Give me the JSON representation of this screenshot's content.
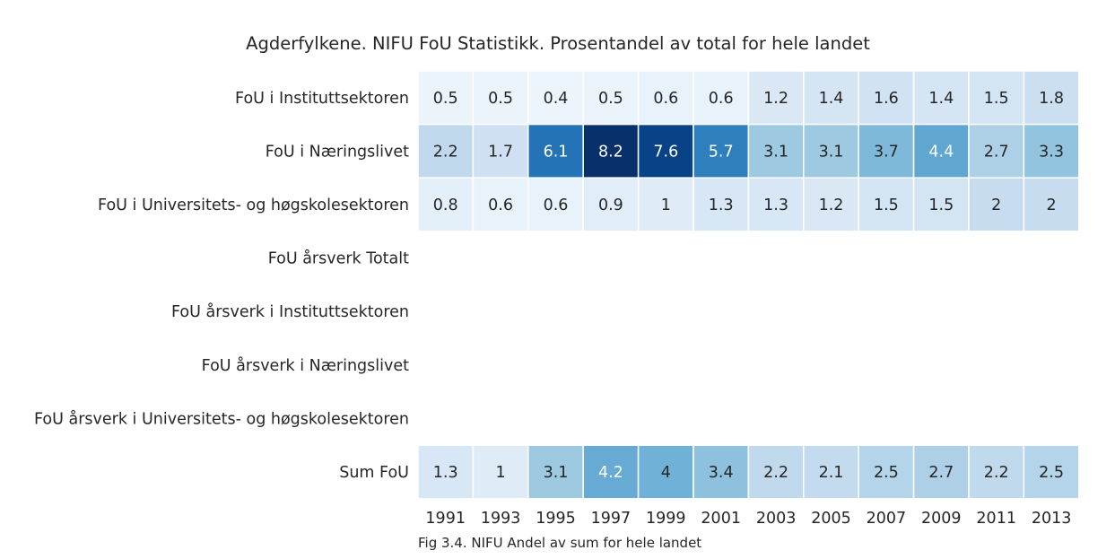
{
  "chart_data": {
    "type": "heatmap",
    "title": "Agderfylkene. NIFU FoU Statistikk. Prosentandel av total for hele landet",
    "caption": "Fig 3.4. NIFU Andel av sum for hele landet",
    "colormap": "Blues",
    "value_range": [
      0,
      8.2
    ],
    "columns": [
      "1991",
      "1993",
      "1995",
      "1997",
      "1999",
      "2001",
      "2003",
      "2005",
      "2007",
      "2009",
      "2011",
      "2013"
    ],
    "rows": [
      {
        "label": "FoU i Instituttsektoren",
        "values": [
          0.5,
          0.5,
          0.4,
          0.5,
          0.6,
          0.6,
          1.2,
          1.4,
          1.6,
          1.4,
          1.5,
          1.8
        ]
      },
      {
        "label": "FoU i Næringslivet",
        "values": [
          2.2,
          1.7,
          6.1,
          8.2,
          7.6,
          5.7,
          3.1,
          3.1,
          3.7,
          4.4,
          2.7,
          3.3
        ]
      },
      {
        "label": "FoU i Universitets- og høgskolesektoren",
        "values": [
          0.8,
          0.6,
          0.6,
          0.9,
          1,
          1.3,
          1.3,
          1.2,
          1.5,
          1.5,
          2,
          2
        ]
      },
      {
        "label": "FoU årsverk Totalt",
        "values": [
          null,
          null,
          null,
          null,
          null,
          null,
          null,
          null,
          null,
          null,
          null,
          null
        ]
      },
      {
        "label": "FoU årsverk i Instituttsektoren",
        "values": [
          null,
          null,
          null,
          null,
          null,
          null,
          null,
          null,
          null,
          null,
          null,
          null
        ]
      },
      {
        "label": "FoU årsverk i Næringslivet",
        "values": [
          null,
          null,
          null,
          null,
          null,
          null,
          null,
          null,
          null,
          null,
          null,
          null
        ]
      },
      {
        "label": "FoU årsverk i Universitets- og høgskolesektoren",
        "values": [
          null,
          null,
          null,
          null,
          null,
          null,
          null,
          null,
          null,
          null,
          null,
          null
        ]
      },
      {
        "label": "Sum FoU",
        "values": [
          1.3,
          1,
          3.1,
          4.2,
          4,
          3.4,
          2.2,
          2.1,
          2.5,
          2.7,
          2.2,
          2.5
        ]
      }
    ]
  }
}
